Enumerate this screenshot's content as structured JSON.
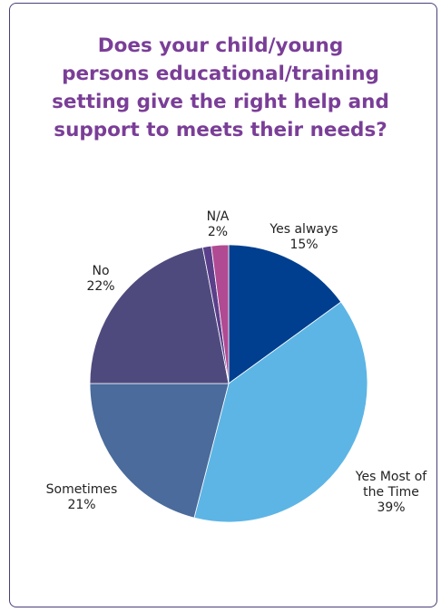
{
  "title_lines": [
    "Does your child/young",
    "persons educational/training",
    "setting give the right help and",
    "support to meets their needs?"
  ],
  "chart_data": {
    "type": "pie",
    "title": "Does your child/young persons educational/training setting give the right help and support to meets their needs?",
    "slices": [
      {
        "label": "Yes always",
        "label_lines": [
          "Yes always",
          "15%"
        ],
        "value": 15,
        "color": "#003f8f"
      },
      {
        "label": "Yes Most of the Time",
        "label_lines": [
          "Yes Most of",
          "the Time",
          "39%"
        ],
        "value": 39,
        "color": "#5db5e5"
      },
      {
        "label": "Sometimes",
        "label_lines": [
          "Sometimes",
          "21%"
        ],
        "value": 21,
        "color": "#4a6b9b"
      },
      {
        "label": "No",
        "label_lines": [
          "No",
          "22%"
        ],
        "value": 22,
        "color": "#4f4a7e"
      },
      {
        "label": "",
        "label_lines": [],
        "value": 1,
        "color": "#5a3f8a"
      },
      {
        "label": "N/A",
        "label_lines": [
          "N/A",
          "2%"
        ],
        "value": 2,
        "color": "#b04a92"
      }
    ],
    "legend": "none",
    "start_angle": "12 o'clock",
    "direction": "clockwise"
  }
}
